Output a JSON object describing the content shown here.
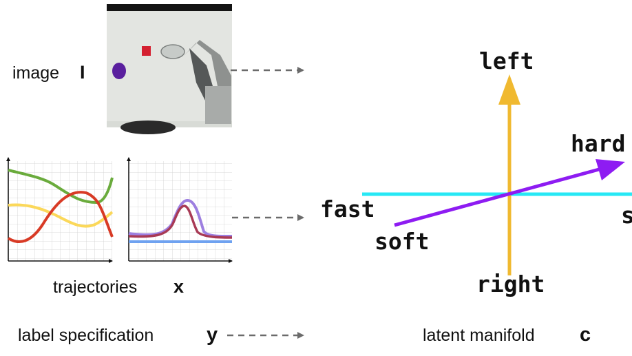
{
  "inputs": {
    "image_label": "image",
    "image_symbol": "I",
    "trajectories_label": "trajectories",
    "trajectories_symbol": "x",
    "label_spec_label": "label specification",
    "label_spec_symbol": "y"
  },
  "manifold": {
    "caption": "latent manifold",
    "caption_symbol": "c",
    "axes": {
      "left": "left",
      "right": "right",
      "fast": "fast",
      "slow_partial": "s",
      "hard_partial": "hard",
      "soft": "soft"
    }
  },
  "colors": {
    "vertical_axis": "#f0b930",
    "horizontal_axis": "#27e8f5",
    "diagonal_axis": "#8e1cf2",
    "dashed_arrow": "#6b6b6b",
    "traj_green": "#6aab3c",
    "traj_red": "#d83a25",
    "traj_yellow": "#fbd85a",
    "traj_purple": "#9d7fe0",
    "traj_maroon": "#a83a55",
    "traj_blue": "#6fa2f0"
  }
}
